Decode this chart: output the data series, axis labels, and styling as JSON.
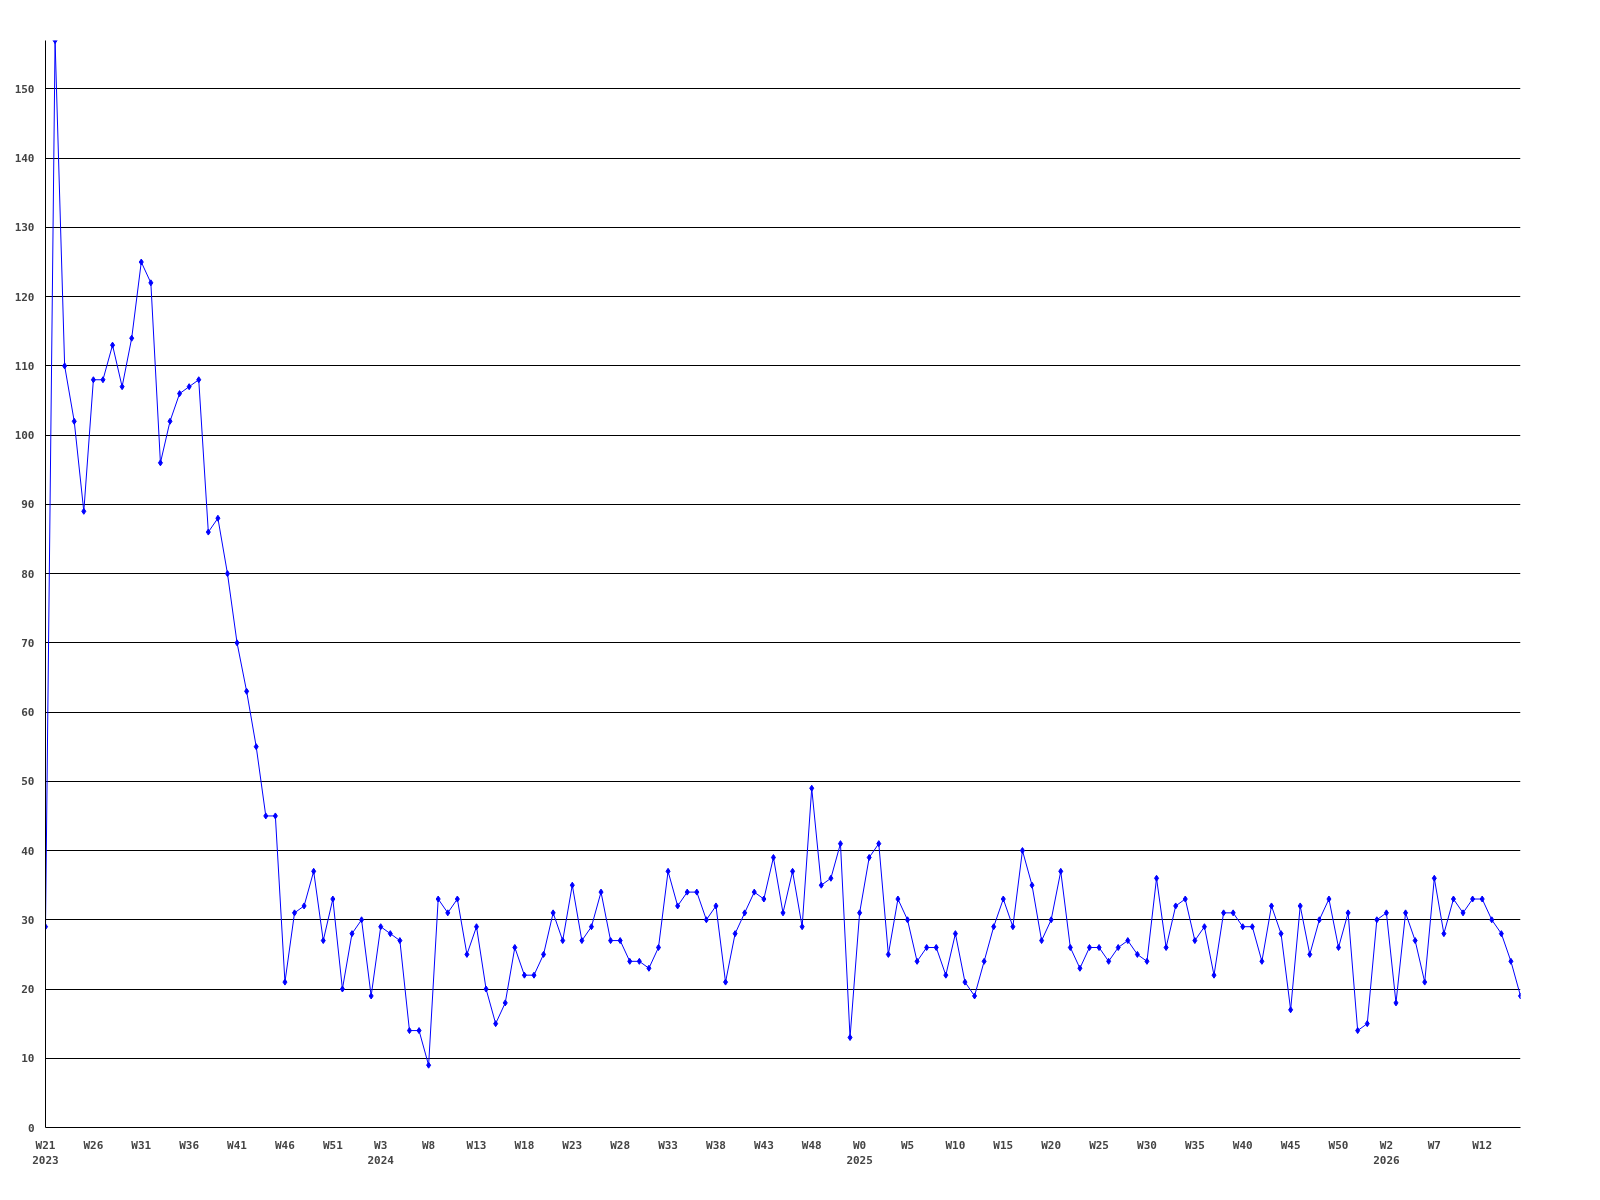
{
  "chart_data": {
    "type": "line",
    "marker": "diamond",
    "line_style": "solid",
    "grid": "y",
    "categories": [
      "W21\n2023",
      null,
      null,
      null,
      null,
      "W26",
      null,
      null,
      null,
      null,
      "W31",
      null,
      null,
      null,
      null,
      "W36",
      null,
      null,
      null,
      null,
      "W41",
      null,
      null,
      null,
      null,
      "W46",
      null,
      null,
      null,
      null,
      "W51",
      null,
      null,
      null,
      null,
      "W3\n2024",
      null,
      null,
      null,
      null,
      "W8",
      null,
      null,
      null,
      null,
      "W13",
      null,
      null,
      null,
      null,
      "W18",
      null,
      null,
      null,
      null,
      "W23",
      null,
      null,
      null,
      null,
      "W28",
      null,
      null,
      null,
      null,
      "W33",
      null,
      null,
      null,
      null,
      "W38",
      null,
      null,
      null,
      null,
      "W43",
      null,
      null,
      null,
      null,
      "W48",
      null,
      null,
      null,
      null,
      "W0\n2025",
      null,
      null,
      null,
      null,
      "W5",
      null,
      null,
      null,
      null,
      "W10",
      null,
      null,
      null,
      null,
      "W15",
      null,
      null,
      null,
      null,
      "W20",
      null,
      null,
      null,
      null,
      "W25",
      null,
      null,
      null,
      null,
      "W30",
      null,
      null,
      null,
      null,
      "W35",
      null,
      null,
      null,
      null,
      "W40",
      null,
      null,
      null,
      null,
      "W45",
      null,
      null,
      null,
      null,
      "W50",
      null,
      null,
      null,
      null,
      "W2\n2026",
      null,
      null,
      null,
      null,
      "W7",
      null,
      null,
      null,
      null,
      "W12",
      null,
      null,
      null,
      null
    ],
    "series": [
      {
        "color": "#0000ff",
        "values": [
          29,
          157,
          110,
          102,
          89,
          108,
          108,
          113,
          107,
          114,
          125,
          122,
          96,
          102,
          106,
          107,
          108,
          86,
          88,
          80,
          70,
          63,
          55,
          45,
          45,
          21,
          31,
          32,
          37,
          27,
          33,
          20,
          28,
          30,
          19,
          29,
          28,
          27,
          14,
          14,
          9,
          33,
          31,
          33,
          25,
          29,
          20,
          15,
          18,
          26,
          22,
          22,
          25,
          31,
          27,
          35,
          27,
          29,
          34,
          27,
          27,
          24,
          24,
          23,
          26,
          37,
          32,
          34,
          34,
          30,
          32,
          21,
          28,
          31,
          34,
          33,
          39,
          31,
          37,
          29,
          49,
          35,
          36,
          41,
          13,
          31,
          39,
          41,
          25,
          33,
          30,
          24,
          26,
          26,
          22,
          28,
          21,
          19,
          24,
          29,
          33,
          29,
          40,
          35,
          27,
          30,
          37,
          26,
          23,
          26,
          26,
          24,
          26,
          27,
          25,
          24,
          36,
          26,
          32,
          33,
          27,
          29,
          22,
          31,
          31,
          29,
          29,
          24,
          32,
          28,
          17,
          32,
          25,
          30,
          33,
          26,
          31,
          14,
          15,
          30,
          31,
          18,
          31,
          27,
          21,
          36,
          28,
          33,
          31,
          33,
          33,
          30,
          28,
          24,
          19
        ]
      }
    ],
    "ylim": [
      0,
      157
    ],
    "yticks": [
      0,
      10,
      20,
      30,
      40,
      50,
      60,
      70,
      80,
      90,
      100,
      110,
      120,
      130,
      140,
      150
    ]
  }
}
